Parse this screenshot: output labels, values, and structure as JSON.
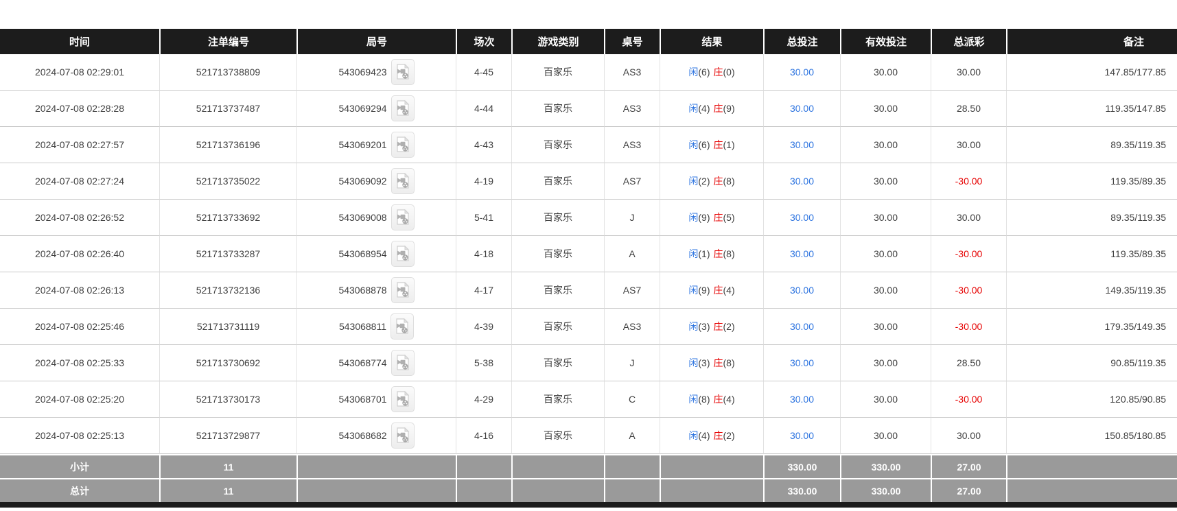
{
  "colors": {
    "header_bg": "#1c1c1c",
    "footer_bg": "#9a9a9a",
    "player_blue": "#2d74e0",
    "banker_red": "#e60000",
    "negative_red": "#e60000"
  },
  "icons": {
    "round_video": "video-replay-icon"
  },
  "table": {
    "columns": [
      {
        "key": "time",
        "label": "时间"
      },
      {
        "key": "order_no",
        "label": "注单编号"
      },
      {
        "key": "round_no",
        "label": "局号"
      },
      {
        "key": "session",
        "label": "场次"
      },
      {
        "key": "game_type",
        "label": "游戏类别"
      },
      {
        "key": "table_no",
        "label": "桌号"
      },
      {
        "key": "result",
        "label": "结果"
      },
      {
        "key": "total_bet",
        "label": "总投注"
      },
      {
        "key": "valid_bet",
        "label": "有效投注"
      },
      {
        "key": "payout",
        "label": "总派彩"
      },
      {
        "key": "remark",
        "label": "备注"
      }
    ],
    "rows": [
      {
        "time": "2024-07-08 02:29:01",
        "order_no": "521713738809",
        "round_no": "543069423",
        "session": "4-45",
        "game_type": "百家乐",
        "table_no": "AS3",
        "result": {
          "player": "闲",
          "player_value": "(6)",
          "banker": "庄",
          "banker_value": "(0)"
        },
        "total_bet": "30.00",
        "valid_bet": "30.00",
        "payout": "30.00",
        "remark": "147.85/177.85"
      },
      {
        "time": "2024-07-08 02:28:28",
        "order_no": "521713737487",
        "round_no": "543069294",
        "session": "4-44",
        "game_type": "百家乐",
        "table_no": "AS3",
        "result": {
          "player": "闲",
          "player_value": "(4)",
          "banker": "庄",
          "banker_value": "(9)"
        },
        "total_bet": "30.00",
        "valid_bet": "30.00",
        "payout": "28.50",
        "remark": "119.35/147.85"
      },
      {
        "time": "2024-07-08 02:27:57",
        "order_no": "521713736196",
        "round_no": "543069201",
        "session": "4-43",
        "game_type": "百家乐",
        "table_no": "AS3",
        "result": {
          "player": "闲",
          "player_value": "(6)",
          "banker": "庄",
          "banker_value": "(1)"
        },
        "total_bet": "30.00",
        "valid_bet": "30.00",
        "payout": "30.00",
        "remark": "89.35/119.35"
      },
      {
        "time": "2024-07-08 02:27:24",
        "order_no": "521713735022",
        "round_no": "543069092",
        "session": "4-19",
        "game_type": "百家乐",
        "table_no": "AS7",
        "result": {
          "player": "闲",
          "player_value": "(2)",
          "banker": "庄",
          "banker_value": "(8)"
        },
        "total_bet": "30.00",
        "valid_bet": "30.00",
        "payout": "-30.00",
        "remark": "119.35/89.35"
      },
      {
        "time": "2024-07-08 02:26:52",
        "order_no": "521713733692",
        "round_no": "543069008",
        "session": "5-41",
        "game_type": "百家乐",
        "table_no": "J",
        "result": {
          "player": "闲",
          "player_value": "(9)",
          "banker": "庄",
          "banker_value": "(5)"
        },
        "total_bet": "30.00",
        "valid_bet": "30.00",
        "payout": "30.00",
        "remark": "89.35/119.35"
      },
      {
        "time": "2024-07-08 02:26:40",
        "order_no": "521713733287",
        "round_no": "543068954",
        "session": "4-18",
        "game_type": "百家乐",
        "table_no": "A",
        "result": {
          "player": "闲",
          "player_value": "(1)",
          "banker": "庄",
          "banker_value": "(8)"
        },
        "total_bet": "30.00",
        "valid_bet": "30.00",
        "payout": "-30.00",
        "remark": "119.35/89.35"
      },
      {
        "time": "2024-07-08 02:26:13",
        "order_no": "521713732136",
        "round_no": "543068878",
        "session": "4-17",
        "game_type": "百家乐",
        "table_no": "AS7",
        "result": {
          "player": "闲",
          "player_value": "(9)",
          "banker": "庄",
          "banker_value": "(4)"
        },
        "total_bet": "30.00",
        "valid_bet": "30.00",
        "payout": "-30.00",
        "remark": "149.35/119.35"
      },
      {
        "time": "2024-07-08 02:25:46",
        "order_no": "521713731119",
        "round_no": "543068811",
        "session": "4-39",
        "game_type": "百家乐",
        "table_no": "AS3",
        "result": {
          "player": "闲",
          "player_value": "(3)",
          "banker": "庄",
          "banker_value": "(2)"
        },
        "total_bet": "30.00",
        "valid_bet": "30.00",
        "payout": "-30.00",
        "remark": "179.35/149.35"
      },
      {
        "time": "2024-07-08 02:25:33",
        "order_no": "521713730692",
        "round_no": "543068774",
        "session": "5-38",
        "game_type": "百家乐",
        "table_no": "J",
        "result": {
          "player": "闲",
          "player_value": "(3)",
          "banker": "庄",
          "banker_value": "(8)"
        },
        "total_bet": "30.00",
        "valid_bet": "30.00",
        "payout": "28.50",
        "remark": "90.85/119.35"
      },
      {
        "time": "2024-07-08 02:25:20",
        "order_no": "521713730173",
        "round_no": "543068701",
        "session": "4-29",
        "game_type": "百家乐",
        "table_no": "C",
        "result": {
          "player": "闲",
          "player_value": "(8)",
          "banker": "庄",
          "banker_value": "(4)"
        },
        "total_bet": "30.00",
        "valid_bet": "30.00",
        "payout": "-30.00",
        "remark": "120.85/90.85"
      },
      {
        "time": "2024-07-08 02:25:13",
        "order_no": "521713729877",
        "round_no": "543068682",
        "session": "4-16",
        "game_type": "百家乐",
        "table_no": "A",
        "result": {
          "player": "闲",
          "player_value": "(4)",
          "banker": "庄",
          "banker_value": "(2)"
        },
        "total_bet": "30.00",
        "valid_bet": "30.00",
        "payout": "30.00",
        "remark": "150.85/180.85"
      }
    ],
    "footer": {
      "subtotal": {
        "label": "小计",
        "count": "11",
        "total_bet": "330.00",
        "valid_bet": "330.00",
        "payout": "27.00"
      },
      "total": {
        "label": "总计",
        "count": "11",
        "total_bet": "330.00",
        "valid_bet": "330.00",
        "payout": "27.00"
      }
    }
  }
}
